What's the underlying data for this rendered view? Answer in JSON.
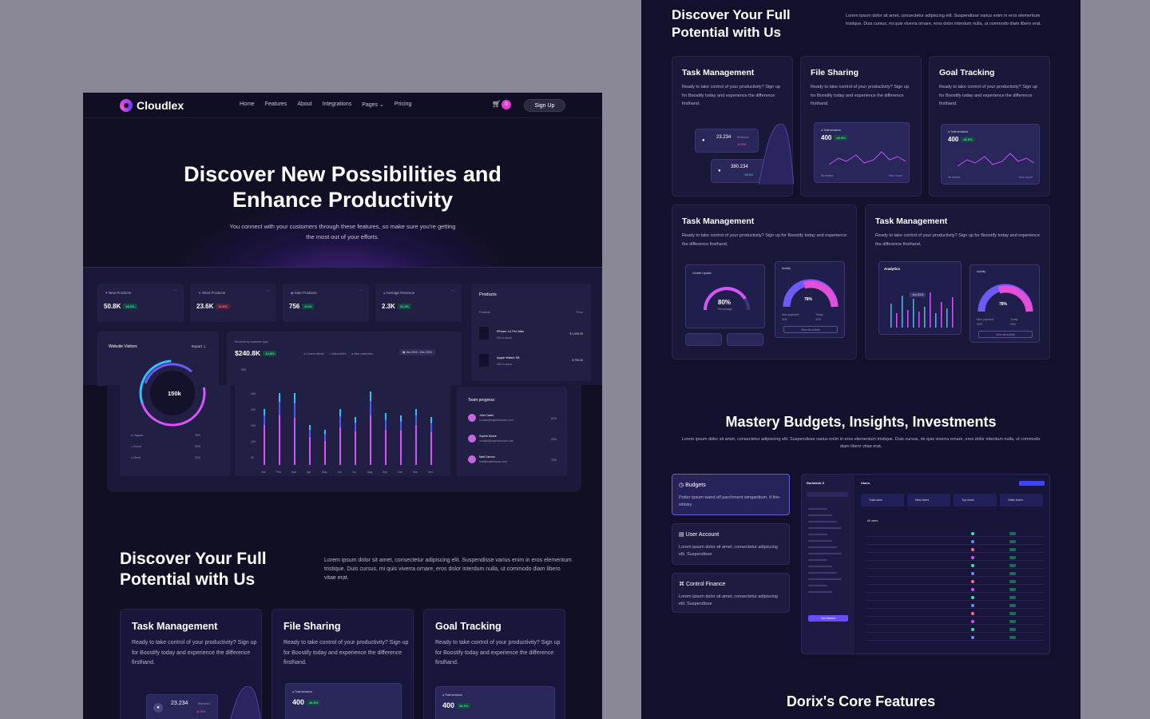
{
  "left": {
    "brand": "Cloudlex",
    "nav": [
      "Home",
      "Features",
      "About",
      "Integrations",
      "Pages",
      "Pricing"
    ],
    "cart_count": "0",
    "signup": "Sign Up",
    "hero_title": "Discover New Possibilities and Enhance Productivity",
    "hero_sub": "You connect with your customers through these  features, so make sure you're getting the most out of your efforts.",
    "stats": [
      {
        "label": "New Products",
        "value": "50.8K",
        "change": "28.4%",
        "up": true
      },
      {
        "label": "Most Products",
        "value": "23.6K",
        "change": "12.6%",
        "up": false
      },
      {
        "label": "Sale Products",
        "value": "756",
        "change": "3.1%",
        "up": true
      },
      {
        "label": "Average Revenue",
        "value": "2.3K",
        "change": "11.3%",
        "up": true
      }
    ],
    "products": {
      "title": "Products",
      "col1": "Products",
      "col2": "Price",
      "items": [
        {
          "name": "iPhone 14 Pro Max",
          "stock": "524 in stock",
          "price": "$ 1,099.00"
        },
        {
          "name": "Apple Watch S8",
          "stock": "320 in stock",
          "price": "$ 799.00"
        }
      ]
    },
    "visitors": {
      "title": "Website Visitors",
      "export": "Export",
      "center": "150k",
      "rows": [
        {
          "name": "Organic",
          "pct": "30%"
        },
        {
          "name": "Social",
          "pct": "50%"
        },
        {
          "name": "Direct",
          "pct": "20%"
        }
      ]
    },
    "revenue": {
      "title": "Revenue by customer type",
      "value": "$240.8K",
      "change": "14.8%",
      "legend": [
        "Current clients",
        "Subscribers",
        "New customers"
      ],
      "range": "Jan 2024 - Dec 2024",
      "yticks": [
        "50K",
        "40K",
        "30K",
        "20K",
        "10K",
        "0K"
      ],
      "months": [
        "Jan",
        "Feb",
        "Mar",
        "Apr",
        "May",
        "Jun",
        "Jul",
        "Aug",
        "Sep",
        "Oct",
        "Nov",
        "Dec"
      ]
    },
    "team": {
      "title": "Team progress",
      "members": [
        {
          "name": "John Carter",
          "email": "contact@sophiemoore.com",
          "pct": "60%"
        },
        {
          "name": "Sophie Moore",
          "email": "contact@sophiemoore.com",
          "pct": "33%"
        },
        {
          "name": "Matt Cannon",
          "email": "info@mattcannon.com",
          "pct": "75%"
        }
      ]
    },
    "discover_title": "Discover Your Full Potential with Us",
    "discover_text": "Lorem ipsum dolor sit amet, consectetur adipiscing elit. Suspendisse varius enim in eros elementum tristique. Duis cursus, mi quis viverra ornare, eros dolor interdum nulla, ut commodo diam libero vitae erat.",
    "features": [
      {
        "title": "Task Management",
        "text": "Ready to take control of your productivity? Sign up for Boostify today and experience the difference firsthand."
      },
      {
        "title": "File Sharing",
        "text": "Ready to take control of your productivity? Sign up for Boostify today and experience the difference firsthand."
      },
      {
        "title": "Goal Tracking",
        "text": "Ready to take control of your productivity? Sign up for Boostify today and experience the difference firsthand."
      }
    ],
    "mini_value": "23.234",
    "mini_label": "Received",
    "mini_change": "-8.25%",
    "sessions_label": "Total sessions",
    "sessions_value": "400",
    "sessions_change": "46.9%"
  },
  "right": {
    "discover_title": "Discover Your Full Potential with Us",
    "discover_text": "Lorem ipsum dolor sit amet, consectetur adipiscing elit. Suspendisse varius enim in eros elementum tristique. Duis cursus, mi quis viverra ornare, eros dolor interdum nulla, ut commodo diam libero erat.",
    "features": [
      {
        "title": "Task Management",
        "text": "Ready to take control of your productivity? Sign up for Boostify today and experience the difference firsthand."
      },
      {
        "title": "File Sharing",
        "text": "Ready to take control of your productivity? Sign up for Boostify today and experience the difference firsthand."
      },
      {
        "title": "Goal Tracking",
        "text": "Ready to take control of your productivity? Sign up for Boostify today and experience the difference firsthand."
      }
    ],
    "mini1_value": "23.234",
    "mini1_label": "Received",
    "mini1_change": "-8.25%",
    "mini2_value": "380.234",
    "mini2_change": "+36.8%",
    "sessions_label": "Total sessions",
    "sessions_value": "400",
    "sessions_change": "46.9%",
    "sessions_footer": "5k visitors",
    "sessions_link": "View report",
    "wide": [
      {
        "title": "Task Management",
        "text": "Ready to take control of your productivity? Sign up for Boostify today and experience the difference firsthand."
      },
      {
        "title": "Task Management",
        "text": "Ready to take control of your productivity? Sign up for Boostify today and experience the difference firsthand."
      }
    ],
    "growth_title": "Growth Update",
    "growth_value": "80%",
    "growth_sub": "Percentage",
    "activity_title": "Activity",
    "activity_value": "78%",
    "activity_link": "View all activity",
    "activity_rows": [
      {
        "name": "New payment",
        "pct": "30%"
      },
      {
        "name": "Today",
        "pct": "20%"
      }
    ],
    "analytics_title": "Analytics",
    "tooltip": "Jan 2024",
    "mastery_title": "Mastery Budgets, Insights, Investments",
    "mastery_text": "Lorem ipsum dolor sit amet, consectetur adipiscing elit. Suspendisse varius enim in eros elementum tristique. Duis cursus, mi quis viverra ornare, eros dolor interdum nulla, ut commodo diam libero vitae erat.",
    "budget_items": [
      {
        "title": "Budgets",
        "text": "Potter ipsum wand elf parchment wingardium. It fire-whisky"
      },
      {
        "title": "User Account",
        "text": "Lorem ipsum dolor sit amet, consectetur adipiscing elit. Suspendisse"
      },
      {
        "title": "Control Finance",
        "text": "Lorem ipsum dolor sit amet, consectetur adipiscing elit. Suspendisse"
      }
    ],
    "app_brand": "Dorixtech X",
    "app_page": "Users",
    "app_cards": [
      "Total users",
      "New Users",
      "Top Users",
      "Other Users"
    ],
    "app_button": "Get Started",
    "all_users": "All users",
    "core_title": "Dorix's Core Features"
  }
}
